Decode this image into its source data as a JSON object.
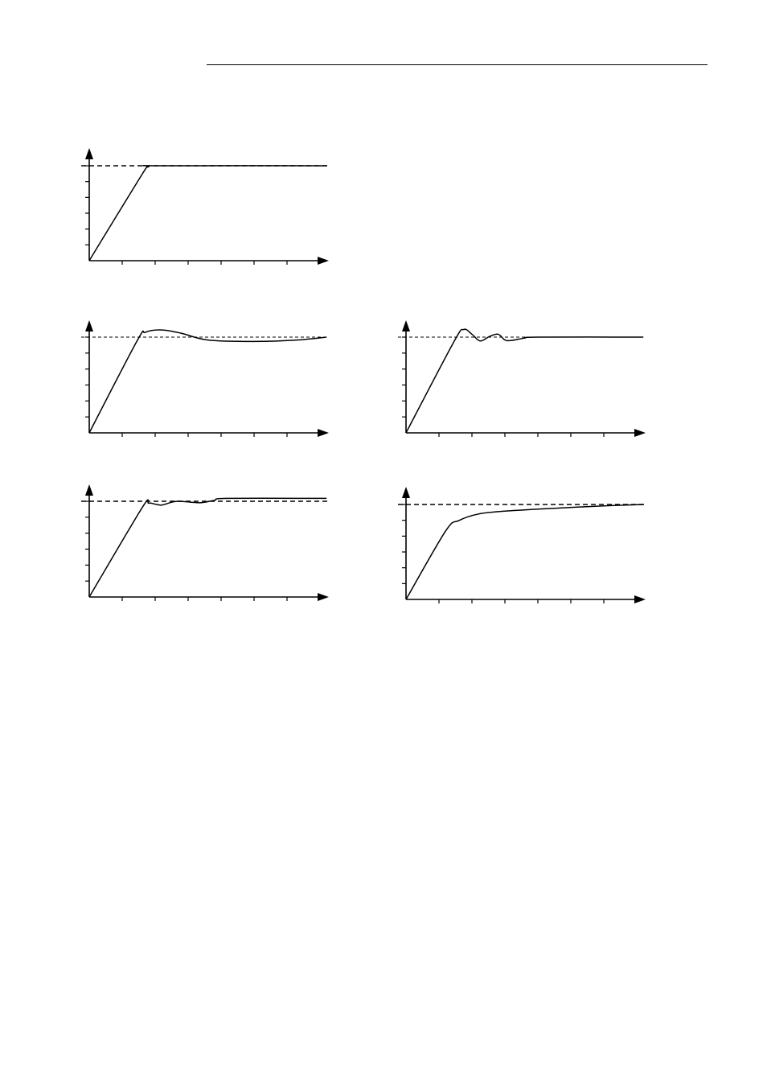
{
  "page": {
    "header_rule": true
  },
  "figures": [
    {
      "id": "response-1",
      "description_key": "ideal",
      "setpoint": 1.0,
      "x_ticks": 7,
      "y_ticks": 6,
      "curve": [
        [
          0,
          0
        ],
        [
          1.55,
          0.88
        ],
        [
          1.8,
          0.99
        ],
        [
          2.1,
          1.0
        ],
        [
          7.2,
          1.0
        ]
      ]
    },
    {
      "id": "response-2",
      "description_key": "overshoot-slow",
      "setpoint": 1.0,
      "x_ticks": 7,
      "y_ticks": 6,
      "curve": [
        [
          0,
          0
        ],
        [
          1.45,
          0.96
        ],
        [
          1.7,
          1.05
        ],
        [
          2.2,
          1.075
        ],
        [
          2.8,
          1.04
        ],
        [
          3.6,
          0.97
        ],
        [
          5.0,
          0.955
        ],
        [
          6.3,
          0.97
        ],
        [
          7.2,
          1.0
        ]
      ]
    },
    {
      "id": "response-3",
      "description_key": "oscillating",
      "setpoint": 1.0,
      "x_ticks": 7,
      "y_ticks": 6,
      "curve": [
        [
          0,
          0
        ],
        [
          1.45,
          0.95
        ],
        [
          1.75,
          1.08
        ],
        [
          2.0,
          1.03
        ],
        [
          2.25,
          0.96
        ],
        [
          2.55,
          1.01
        ],
        [
          2.8,
          1.03
        ],
        [
          3.0,
          0.97
        ],
        [
          3.2,
          0.965
        ],
        [
          3.6,
          0.99
        ],
        [
          4.0,
          1.0
        ],
        [
          7.2,
          1.0
        ]
      ]
    },
    {
      "id": "response-4",
      "description_key": "offset-oscillating",
      "setpoint": 1.0,
      "x_ticks": 7,
      "y_ticks": 6,
      "curve": [
        [
          0,
          0
        ],
        [
          1.6,
          0.93
        ],
        [
          1.8,
          0.98
        ],
        [
          2.0,
          0.97
        ],
        [
          2.2,
          0.96
        ],
        [
          2.5,
          0.99
        ],
        [
          2.7,
          1.0
        ],
        [
          3.1,
          0.99
        ],
        [
          3.4,
          0.985
        ],
        [
          3.8,
          1.01
        ],
        [
          4.2,
          1.03
        ],
        [
          7.2,
          1.03
        ]
      ]
    },
    {
      "id": "response-5",
      "description_key": "overdamped",
      "setpoint": 1.0,
      "x_ticks": 7,
      "y_ticks": 6,
      "curve": [
        [
          0,
          0
        ],
        [
          1.2,
          0.72
        ],
        [
          1.6,
          0.83
        ],
        [
          2.2,
          0.9
        ],
        [
          3.0,
          0.93
        ],
        [
          4.5,
          0.96
        ],
        [
          6.0,
          0.985
        ],
        [
          7.2,
          1.0
        ]
      ]
    }
  ]
}
